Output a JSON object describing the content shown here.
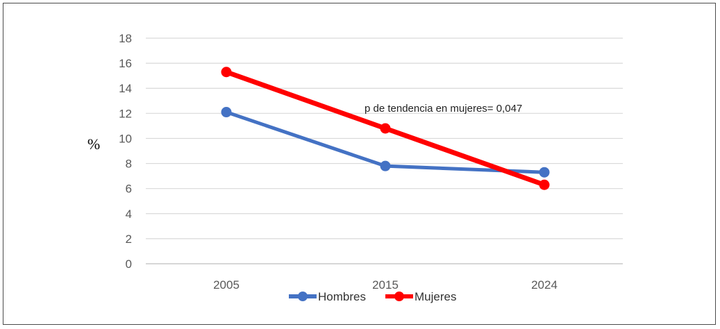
{
  "chart_data": {
    "type": "line",
    "categories": [
      "2005",
      "2015",
      "2024"
    ],
    "series": [
      {
        "name": "Hombres",
        "values": [
          12.1,
          7.8,
          7.3
        ],
        "color": "#4472C4"
      },
      {
        "name": "Mujeres",
        "values": [
          15.3,
          10.8,
          6.3
        ],
        "color": "#FF0000"
      }
    ],
    "ylabel": "%",
    "ylim": [
      0,
      18
    ],
    "yticks": [
      "0",
      "2",
      "4",
      "6",
      "8",
      "10",
      "12",
      "14",
      "16",
      "18"
    ],
    "grid": true,
    "legend": "bottom",
    "annotation": "p de tendencia en mujeres= 0,047"
  }
}
